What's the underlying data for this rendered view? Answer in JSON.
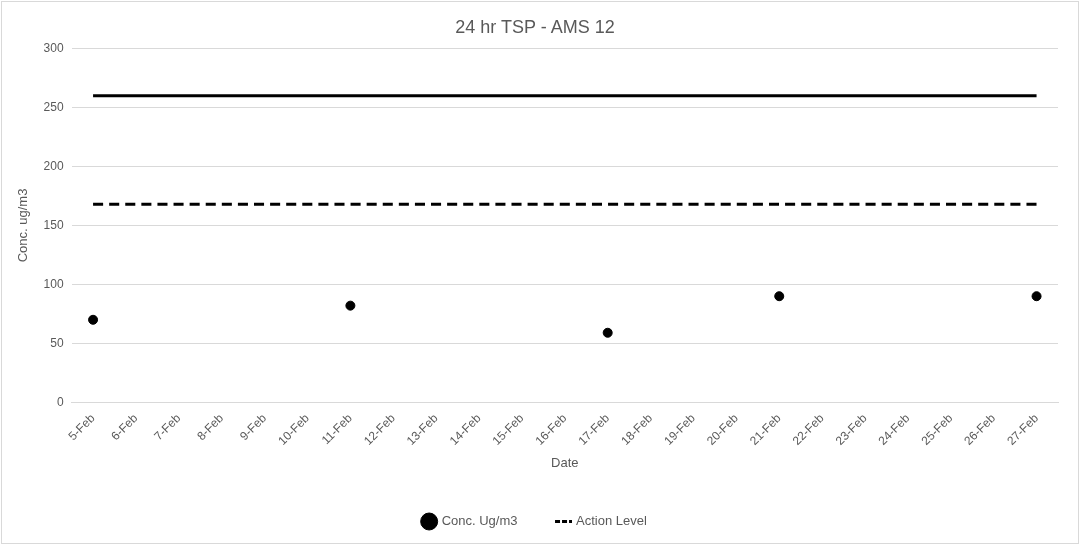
{
  "chart_data": {
    "type": "scatter",
    "title": "24 hr TSP - AMS 12",
    "xlabel": "Date",
    "ylabel": "Conc. ug/m3",
    "categories": [
      "5-Feb",
      "6-Feb",
      "7-Feb",
      "8-Feb",
      "9-Feb",
      "10-Feb",
      "11-Feb",
      "12-Feb",
      "13-Feb",
      "14-Feb",
      "15-Feb",
      "16-Feb",
      "17-Feb",
      "18-Feb",
      "19-Feb",
      "20-Feb",
      "21-Feb",
      "22-Feb",
      "23-Feb",
      "24-Feb",
      "25-Feb",
      "26-Feb",
      "27-Feb"
    ],
    "series": [
      {
        "name": "Conc. Ug/m3",
        "color": "#000000",
        "marker": "circle",
        "values": [
          70,
          null,
          null,
          null,
          null,
          null,
          82,
          null,
          null,
          null,
          null,
          null,
          59,
          null,
          null,
          null,
          90,
          null,
          null,
          null,
          null,
          null,
          90
        ]
      },
      {
        "name": "Action Level",
        "type": "line",
        "color": "#000000",
        "line_style": "dashed",
        "marker": "none",
        "values": [
          168,
          168,
          168,
          168,
          168,
          168,
          168,
          168,
          168,
          168,
          168,
          168,
          168,
          168,
          168,
          168,
          168,
          168,
          168,
          168,
          168,
          168,
          168
        ]
      },
      {
        "type": "line",
        "color": "#000000",
        "line_style": "solid",
        "marker": "none",
        "values": [
          260,
          260,
          260,
          260,
          260,
          260,
          260,
          260,
          260,
          260,
          260,
          260,
          260,
          260,
          260,
          260,
          260,
          260,
          260,
          260,
          260,
          260,
          260
        ]
      }
    ],
    "ylim": [
      0,
      300
    ],
    "yticks": [
      0,
      50,
      100,
      150,
      200,
      250,
      300
    ],
    "grid": "y",
    "legend": "bottom"
  }
}
